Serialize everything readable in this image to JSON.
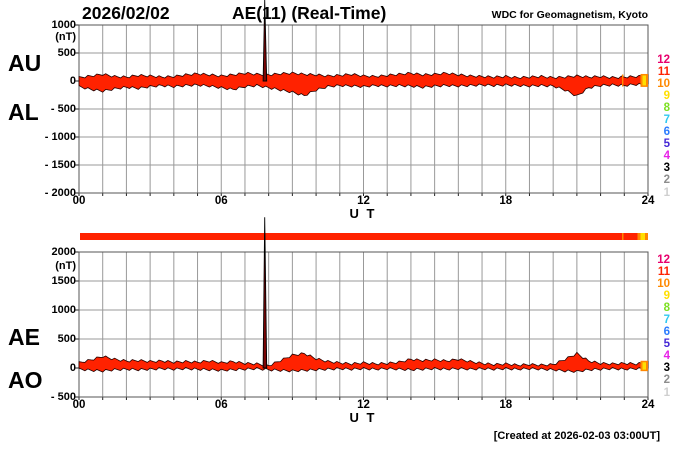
{
  "header": {
    "date": "2026/02/02",
    "title": "AE(11) (Real-Time)",
    "attribution": "WDC for Geomagnetism, Kyoto"
  },
  "footer": {
    "created": "[Created at 2026-02-03 03:00UT]"
  },
  "panels": [
    {
      "left_labels": [
        "AU",
        "AL"
      ],
      "unit": "(nT)",
      "xlabel": "U T",
      "yticks": [
        {
          "v": 1000,
          "label": "1000"
        },
        {
          "v": 500,
          "label": "500"
        },
        {
          "v": 0,
          "label": "0"
        },
        {
          "v": -500,
          "label": "- 500"
        },
        {
          "v": -1000,
          "label": "- 1000"
        },
        {
          "v": -1500,
          "label": "- 1500"
        },
        {
          "v": -2000,
          "label": "- 2000"
        }
      ],
      "xticks": [
        {
          "h": 0,
          "label": "00"
        },
        {
          "h": 6,
          "label": "06"
        },
        {
          "h": 12,
          "label": "12"
        },
        {
          "h": 18,
          "label": "18"
        },
        {
          "h": 24,
          "label": "24"
        }
      ]
    },
    {
      "left_labels": [
        "AE",
        "AO"
      ],
      "unit": "(nT)",
      "xlabel": "U T",
      "yticks": [
        {
          "v": 2000,
          "label": "2000"
        },
        {
          "v": 1500,
          "label": "1500"
        },
        {
          "v": 1000,
          "label": "1000"
        },
        {
          "v": 500,
          "label": "500"
        },
        {
          "v": 0,
          "label": "0"
        },
        {
          "v": -500,
          "label": "- 500"
        }
      ],
      "xticks": [
        {
          "h": 0,
          "label": "00"
        },
        {
          "h": 6,
          "label": "06"
        },
        {
          "h": 12,
          "label": "12"
        },
        {
          "h": 18,
          "label": "18"
        },
        {
          "h": 24,
          "label": "24"
        }
      ]
    }
  ],
  "legend": {
    "station_counts": [
      {
        "n": "12",
        "color": "#e8006e"
      },
      {
        "n": "11",
        "color": "#ff2200"
      },
      {
        "n": "10",
        "color": "#ff8800"
      },
      {
        "n": "9",
        "color": "#ffdf00"
      },
      {
        "n": "8",
        "color": "#7de022"
      },
      {
        "n": "7",
        "color": "#30c8f0"
      },
      {
        "n": "6",
        "color": "#2b7bff"
      },
      {
        "n": "5",
        "color": "#4527d6"
      },
      {
        "n": "4",
        "color": "#e822e8"
      },
      {
        "n": "3",
        "color": "#000000"
      },
      {
        "n": "2",
        "color": "#8d8d8d"
      },
      {
        "n": "1",
        "color": "#cfcfcf"
      }
    ]
  },
  "availability_bar": {
    "base_color": "#ff2200",
    "segments": [
      {
        "x": 622,
        "w": 1.5,
        "color": "#ff8800"
      },
      {
        "x": 637.5,
        "w": 3,
        "color": "#ff8800"
      },
      {
        "x": 640.5,
        "w": 4.5,
        "color": "#ffdf00"
      },
      {
        "x": 645,
        "w": 3,
        "color": "#ff8800"
      }
    ]
  },
  "colors": {
    "trace": "#ff2200",
    "trace_outline": "#220000",
    "spike": "#7a0505",
    "tail_orange": "#ff8800",
    "tail_yellow": "#ffdf00",
    "grid": "#999999",
    "frame": "#555555"
  },
  "chart_data": [
    {
      "type": "area",
      "title": "AU and AL indices",
      "xlabel": "U T",
      "ylabel": "(nT)",
      "ylim": [
        -2000,
        1000
      ],
      "xlim_hours": [
        0,
        24
      ],
      "x_step_hours": 0.5,
      "series": [
        {
          "name": "AU",
          "values": [
            60,
            90,
            120,
            80,
            70,
            100,
            90,
            70,
            80,
            110,
            130,
            110,
            90,
            110,
            140,
            120,
            110,
            130,
            140,
            120,
            110,
            90,
            100,
            120,
            90,
            80,
            100,
            120,
            140,
            110,
            120,
            140,
            110,
            90,
            80,
            70,
            80,
            60,
            70,
            80,
            60,
            70,
            90,
            70,
            80,
            60,
            70,
            80,
            90
          ]
        },
        {
          "name": "AL",
          "values": [
            -100,
            -150,
            -180,
            -140,
            -110,
            -130,
            -100,
            -80,
            -100,
            -80,
            -70,
            -90,
            -120,
            -150,
            -100,
            -80,
            -120,
            -160,
            -200,
            -260,
            -160,
            -100,
            -80,
            -90,
            -100,
            -80,
            -90,
            -80,
            -90,
            -110,
            -90,
            -80,
            -90,
            -80,
            -70,
            -80,
            -70,
            -80,
            -90,
            -80,
            -90,
            -160,
            -270,
            -120,
            -80,
            -70,
            -80,
            -60,
            -70
          ]
        }
      ],
      "spike": {
        "t_hours": 7.85,
        "value": 1450,
        "note": "off-scale spike"
      }
    },
    {
      "type": "area",
      "title": "AE and AO indices",
      "xlabel": "U T",
      "ylabel": "(nT)",
      "ylim": [
        -500,
        2000
      ],
      "xlim_hours": [
        0,
        24
      ],
      "x_step_hours": 0.5,
      "series": [
        {
          "name": "AE",
          "values": [
            90,
            140,
            200,
            150,
            120,
            130,
            110,
            120,
            100,
            110,
            100,
            120,
            90,
            110,
            80,
            70,
            40,
            130,
            220,
            250,
            160,
            110,
            90,
            70,
            90,
            70,
            80,
            100,
            150,
            130,
            140,
            120,
            150,
            110,
            80,
            60,
            70,
            50,
            60,
            50,
            60,
            150,
            250,
            120,
            80,
            70,
            80,
            70,
            90
          ]
        },
        {
          "name": "AO",
          "values": [
            -20,
            -40,
            -50,
            -30,
            -20,
            -30,
            -20,
            -10,
            -20,
            -10,
            -20,
            -30,
            -40,
            -30,
            -20,
            -10,
            -30,
            -40,
            -50,
            -40,
            -30,
            -20,
            -10,
            -20,
            -10,
            -20,
            -10,
            -20,
            -30,
            -20,
            -10,
            -20,
            -10,
            -20,
            -10,
            -20,
            -10,
            -20,
            -10,
            -20,
            -30,
            -50,
            -60,
            -30,
            -20,
            -10,
            -20,
            -10,
            -20
          ]
        }
      ],
      "spike": {
        "t_hours": 7.85,
        "value": 2600,
        "note": "off-scale spike"
      }
    }
  ]
}
